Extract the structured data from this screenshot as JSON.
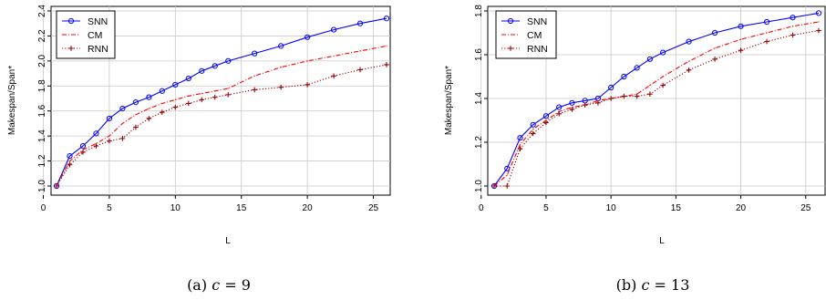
{
  "chart_data": [
    {
      "type": "line",
      "caption_prefix": "(a)",
      "caption_var": "c",
      "caption_eq": "= 9",
      "xlabel": "L",
      "ylabel": "Makespan/Span*",
      "xlim": [
        1,
        26
      ],
      "ylim": [
        1.0,
        2.4
      ],
      "xticks": [
        0,
        5,
        10,
        15,
        20,
        25
      ],
      "yticks": [
        "1.0",
        "1.2",
        "1.4",
        "1.6",
        "1.8",
        "2.0",
        "2.2",
        "2.4"
      ],
      "grid": true,
      "legend_position": "top-left",
      "series": [
        {
          "name": "SNN",
          "color": "#0000ff",
          "style": "solid",
          "marker": "circle",
          "x": [
            1,
            2,
            3,
            4,
            5,
            6,
            7,
            8,
            9,
            10,
            11,
            12,
            13,
            14,
            16,
            18,
            20,
            22,
            24,
            26
          ],
          "y": [
            1.0,
            1.24,
            1.32,
            1.42,
            1.54,
            1.62,
            1.67,
            1.71,
            1.76,
            1.81,
            1.86,
            1.92,
            1.96,
            2.0,
            2.06,
            2.12,
            2.19,
            2.25,
            2.3,
            2.34
          ]
        },
        {
          "name": "CM",
          "color": "#ff0000",
          "style": "dashdot",
          "marker": "none",
          "x": [
            1,
            2,
            3,
            4,
            5,
            6,
            7,
            8,
            9,
            10,
            11,
            12,
            13,
            14,
            16,
            18,
            20,
            22,
            24,
            26
          ],
          "y": [
            1.0,
            1.2,
            1.29,
            1.34,
            1.4,
            1.5,
            1.57,
            1.62,
            1.66,
            1.69,
            1.72,
            1.74,
            1.76,
            1.78,
            1.88,
            1.95,
            2.0,
            2.04,
            2.08,
            2.12
          ]
        },
        {
          "name": "RNN",
          "color": "#990000",
          "style": "dotted",
          "marker": "plus",
          "x": [
            1,
            2,
            3,
            4,
            5,
            6,
            7,
            8,
            9,
            10,
            11,
            12,
            13,
            14,
            16,
            18,
            20,
            22,
            24,
            26
          ],
          "y": [
            1.0,
            1.17,
            1.27,
            1.32,
            1.36,
            1.38,
            1.47,
            1.54,
            1.59,
            1.63,
            1.66,
            1.69,
            1.71,
            1.73,
            1.77,
            1.79,
            1.81,
            1.88,
            1.93,
            1.97
          ]
        }
      ]
    },
    {
      "type": "line",
      "caption_prefix": "(b)",
      "caption_var": "c",
      "caption_eq": "= 13",
      "xlabel": "L",
      "ylabel": "Makespan/Span*",
      "xlim": [
        1,
        26
      ],
      "ylim": [
        1.0,
        1.8
      ],
      "xticks": [
        0,
        5,
        10,
        15,
        20,
        25
      ],
      "yticks": [
        "1.0",
        "1.2",
        "1.4",
        "1.6",
        "1.8"
      ],
      "grid": true,
      "legend_position": "top-right",
      "series": [
        {
          "name": "SNN",
          "color": "#0000ff",
          "style": "solid",
          "marker": "circle",
          "x": [
            1,
            2,
            3,
            4,
            5,
            6,
            7,
            8,
            9,
            10,
            11,
            12,
            13,
            14,
            16,
            18,
            20,
            22,
            24,
            26
          ],
          "y": [
            1.0,
            1.08,
            1.22,
            1.28,
            1.32,
            1.36,
            1.38,
            1.39,
            1.4,
            1.45,
            1.5,
            1.54,
            1.58,
            1.61,
            1.66,
            1.7,
            1.73,
            1.75,
            1.77,
            1.79
          ]
        },
        {
          "name": "CM",
          "color": "#ff0000",
          "style": "dashdot",
          "marker": "none",
          "x": [
            1,
            2,
            3,
            4,
            5,
            6,
            7,
            8,
            9,
            10,
            11,
            12,
            13,
            14,
            16,
            18,
            20,
            22,
            24,
            26
          ],
          "y": [
            1.0,
            1.05,
            1.19,
            1.26,
            1.3,
            1.34,
            1.36,
            1.37,
            1.39,
            1.4,
            1.41,
            1.42,
            1.46,
            1.5,
            1.57,
            1.63,
            1.67,
            1.7,
            1.73,
            1.75
          ]
        },
        {
          "name": "RNN",
          "color": "#990000",
          "style": "dotted",
          "marker": "plus",
          "x": [
            1,
            2,
            3,
            4,
            5,
            6,
            7,
            8,
            9,
            10,
            11,
            12,
            13,
            14,
            16,
            18,
            20,
            22,
            24,
            26
          ],
          "y": [
            1.0,
            1.0,
            1.17,
            1.24,
            1.29,
            1.33,
            1.35,
            1.37,
            1.38,
            1.4,
            1.41,
            1.41,
            1.42,
            1.46,
            1.53,
            1.58,
            1.62,
            1.66,
            1.69,
            1.71
          ]
        }
      ]
    }
  ]
}
